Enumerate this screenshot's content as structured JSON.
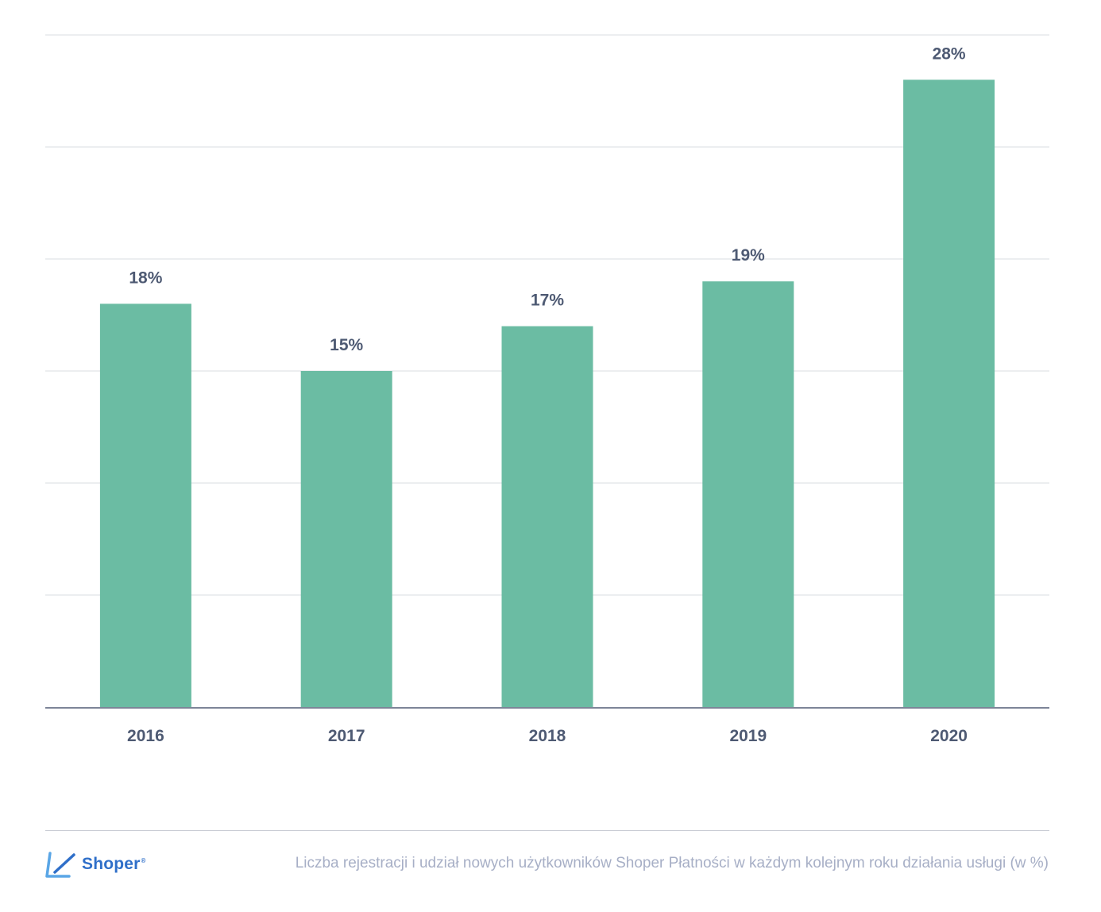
{
  "chart_data": {
    "type": "bar",
    "categories": [
      "2016",
      "2017",
      "2018",
      "2019",
      "2020"
    ],
    "values": [
      18,
      15,
      17,
      19,
      28
    ],
    "value_labels": [
      "18%",
      "15%",
      "17%",
      "19%",
      "28%"
    ],
    "title": "",
    "xlabel": "",
    "ylabel": "",
    "ylim": [
      0,
      30
    ],
    "grid": true,
    "legend": "none",
    "bar_color": "#6bbca3",
    "label_color": "#4e5a73",
    "axis_color": "#7d8598",
    "grid_color": "#e6e8ec"
  },
  "footer": {
    "brand": {
      "name": "Shoper",
      "registered": "®",
      "color": "#2f6fc9"
    },
    "caption": "Liczba rejestracji i udział nowych użytkowników Shoper Płatności w każdym kolejnym roku działania usługi (w %)"
  }
}
